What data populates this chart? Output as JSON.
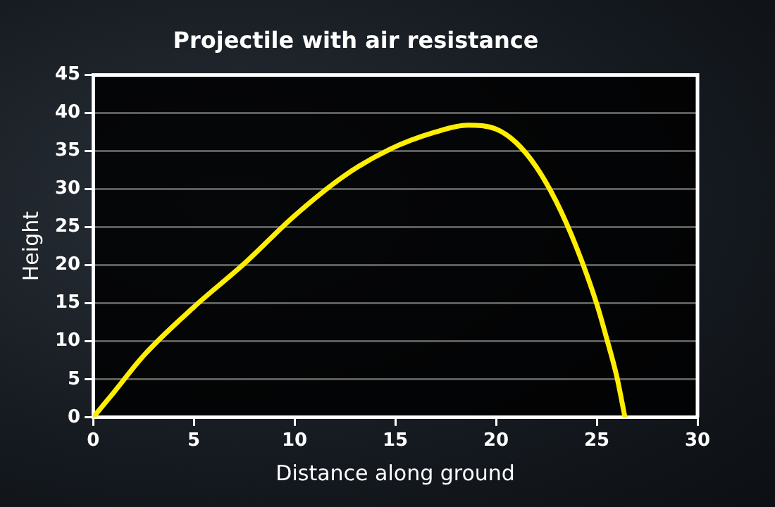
{
  "chart_data": {
    "type": "line",
    "title": "Projectile with air resistance",
    "xlabel": "Distance along ground",
    "ylabel": "Height",
    "x": [
      0,
      1,
      2.5,
      5,
      7.5,
      10,
      12.5,
      14.7,
      17,
      18.6,
      20,
      21,
      22,
      23,
      24,
      25,
      25.5,
      26,
      26.4
    ],
    "series": [
      {
        "color": "#ffee00",
        "values": [
          0,
          3.2,
          8.1,
          14.5,
          20.2,
          26.5,
          31.8,
          35.2,
          37.5,
          38.4,
          37.9,
          36.1,
          32.9,
          28.3,
          22.3,
          14.9,
          10.3,
          5.3,
          0
        ]
      }
    ],
    "xlim": [
      0,
      30
    ],
    "xticks": [
      0,
      5,
      10,
      15,
      20,
      25,
      30
    ],
    "ylim": [
      0,
      45
    ],
    "yticks": [
      0,
      5,
      10,
      15,
      20,
      25,
      30,
      35,
      40,
      45
    ],
    "grid": "y",
    "legend": false,
    "marker": "none",
    "line_style": "solid"
  }
}
